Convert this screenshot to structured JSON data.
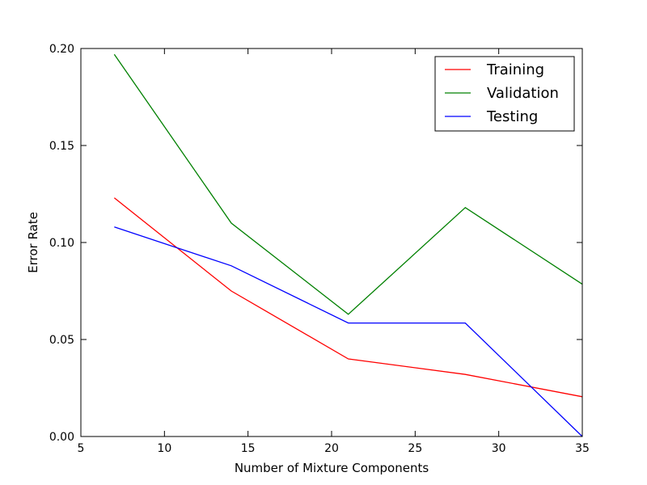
{
  "chart_data": {
    "type": "line",
    "xlabel": "Number of Mixture Components",
    "ylabel": "Error Rate",
    "xlim": [
      5,
      35
    ],
    "ylim": [
      0,
      0.2
    ],
    "x": [
      7,
      14,
      21,
      28,
      35
    ],
    "xticks": [
      {
        "value": 5,
        "label": "5"
      },
      {
        "value": 10,
        "label": "10"
      },
      {
        "value": 15,
        "label": "15"
      },
      {
        "value": 20,
        "label": "20"
      },
      {
        "value": 25,
        "label": "25"
      },
      {
        "value": 30,
        "label": "30"
      },
      {
        "value": 35,
        "label": "35"
      }
    ],
    "yticks": [
      {
        "value": 0,
        "label": "0.00"
      },
      {
        "value": 0.05,
        "label": "0.05"
      },
      {
        "value": 0.1,
        "label": "0.10"
      },
      {
        "value": 0.15,
        "label": "0.15"
      },
      {
        "value": 0.2,
        "label": "0.20"
      }
    ],
    "grid": false,
    "legend_position": "top-right",
    "series": [
      {
        "name": "Training",
        "color": "#ff0000",
        "values": [
          0.123,
          0.075,
          0.04,
          0.032,
          0.0205
        ]
      },
      {
        "name": "Validation",
        "color": "#008000",
        "values": [
          0.197,
          0.11,
          0.063,
          0.118,
          0.0785
        ]
      },
      {
        "name": "Testing",
        "color": "#0000ff",
        "values": [
          0.108,
          0.088,
          0.0585,
          0.0585,
          0.0
        ]
      }
    ]
  }
}
